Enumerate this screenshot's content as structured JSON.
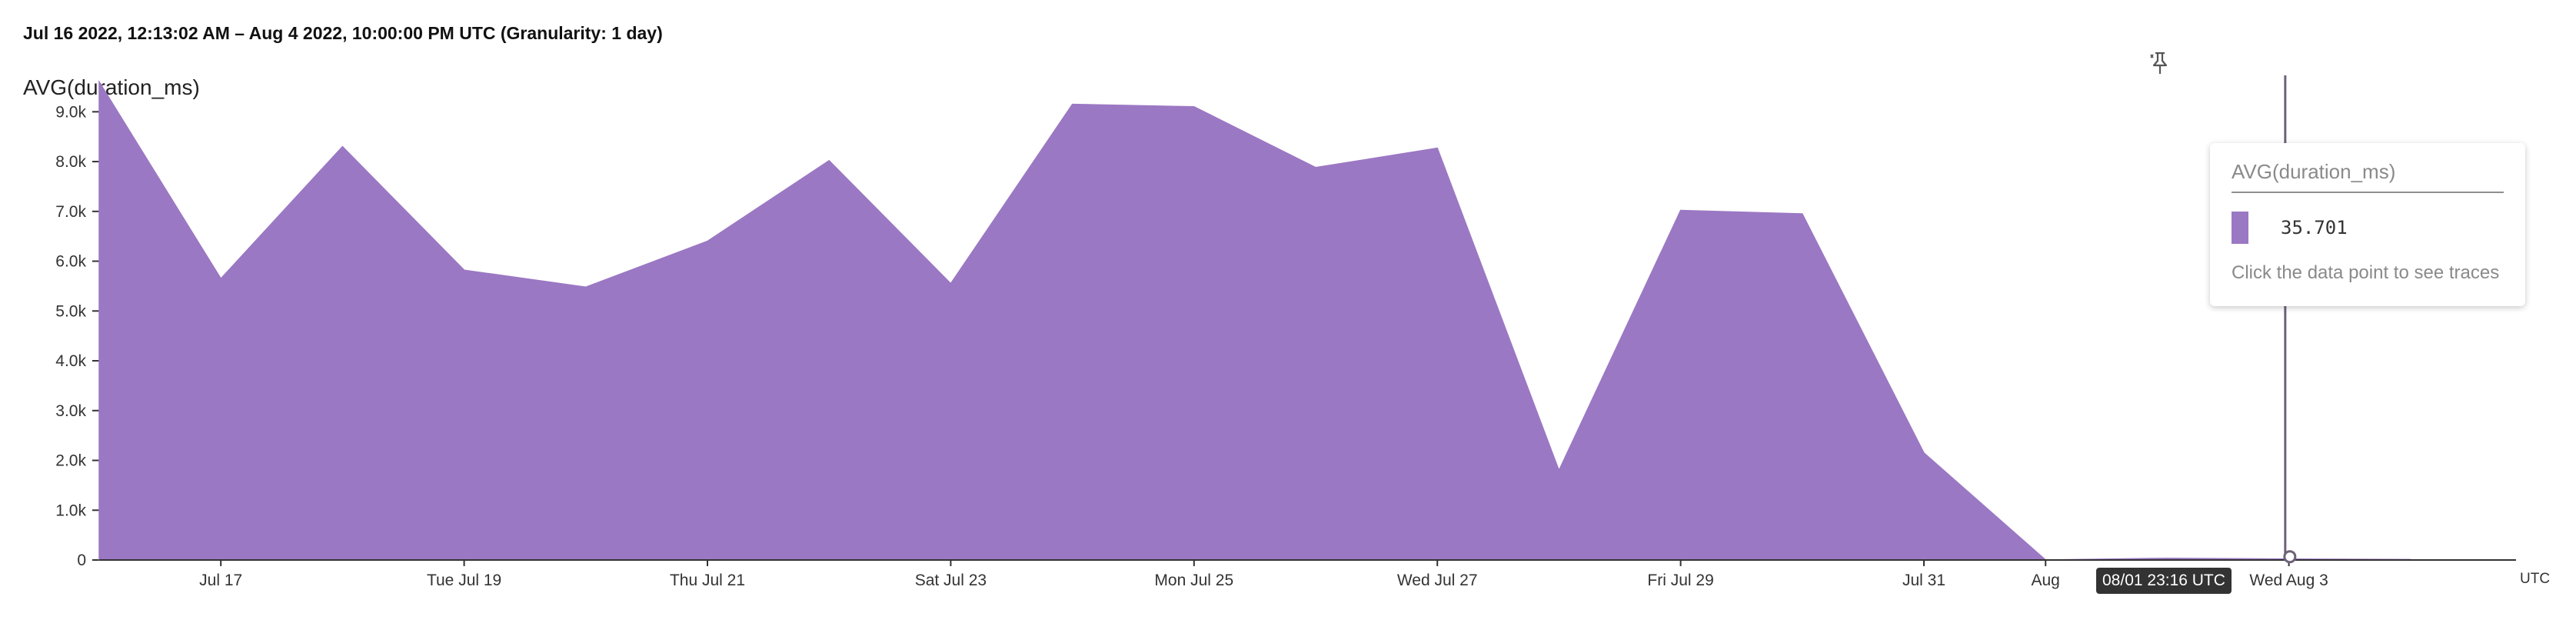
{
  "header": {
    "range_text": "Jul 16 2022, 12:13:02 AM – Aug 4 2022, 10:00:00 PM UTC (Granularity: 1 day)"
  },
  "tooltip": {
    "title": "AVG(duration_ms)",
    "value": "35.701",
    "hint": "Click the data point to see traces"
  },
  "hover": {
    "time_label": "08/01 23:16 UTC",
    "x_day": 17.97
  },
  "icons": {
    "pin": "pin-icon"
  },
  "colors": {
    "series": "#9b78c3",
    "crosshair": "#6d6278",
    "axis": "#333333"
  },
  "chart_data": {
    "type": "area",
    "title": "AVG(duration_ms)",
    "x": [
      "Jul 16",
      "Jul 17",
      "Jul 18",
      "Jul 19",
      "Jul 20",
      "Jul 21",
      "Jul 22",
      "Jul 23",
      "Jul 24",
      "Jul 25",
      "Jul 26",
      "Jul 27",
      "Jul 28",
      "Jul 29",
      "Jul 30",
      "Jul 31",
      "Aug 1",
      "Aug 2",
      "Aug 3",
      "Aug 4"
    ],
    "series": [
      {
        "values": [
          9600,
          5650,
          8300,
          5820,
          5480,
          6400,
          8020,
          5550,
          9150,
          9100,
          7880,
          8270,
          1800,
          7020,
          6950,
          2150,
          0,
          35.701,
          20,
          10
        ]
      }
    ],
    "ylim": [
      0,
      9700
    ],
    "yticks": [
      0,
      1000,
      2000,
      3000,
      4000,
      5000,
      6000,
      7000,
      8000,
      9000
    ],
    "ytick_labels": [
      "0",
      "1.0k",
      "2.0k",
      "3.0k",
      "4.0k",
      "5.0k",
      "6.0k",
      "7.0k",
      "8.0k",
      "9.0k"
    ],
    "xticks": [
      {
        "day": 1,
        "label": "Jul 17"
      },
      {
        "day": 3,
        "label": "Tue Jul 19"
      },
      {
        "day": 5,
        "label": "Thu Jul 21"
      },
      {
        "day": 7,
        "label": "Sat Jul 23"
      },
      {
        "day": 9,
        "label": "Mon Jul 25"
      },
      {
        "day": 11,
        "label": "Wed Jul 27"
      },
      {
        "day": 13,
        "label": "Fri Jul 29"
      },
      {
        "day": 15,
        "label": "Jul 31"
      },
      {
        "day": 16,
        "label": "Aug"
      },
      {
        "day": 18,
        "label": "Wed Aug 3"
      }
    ],
    "x_unit_label": "UTC",
    "grid": false
  }
}
